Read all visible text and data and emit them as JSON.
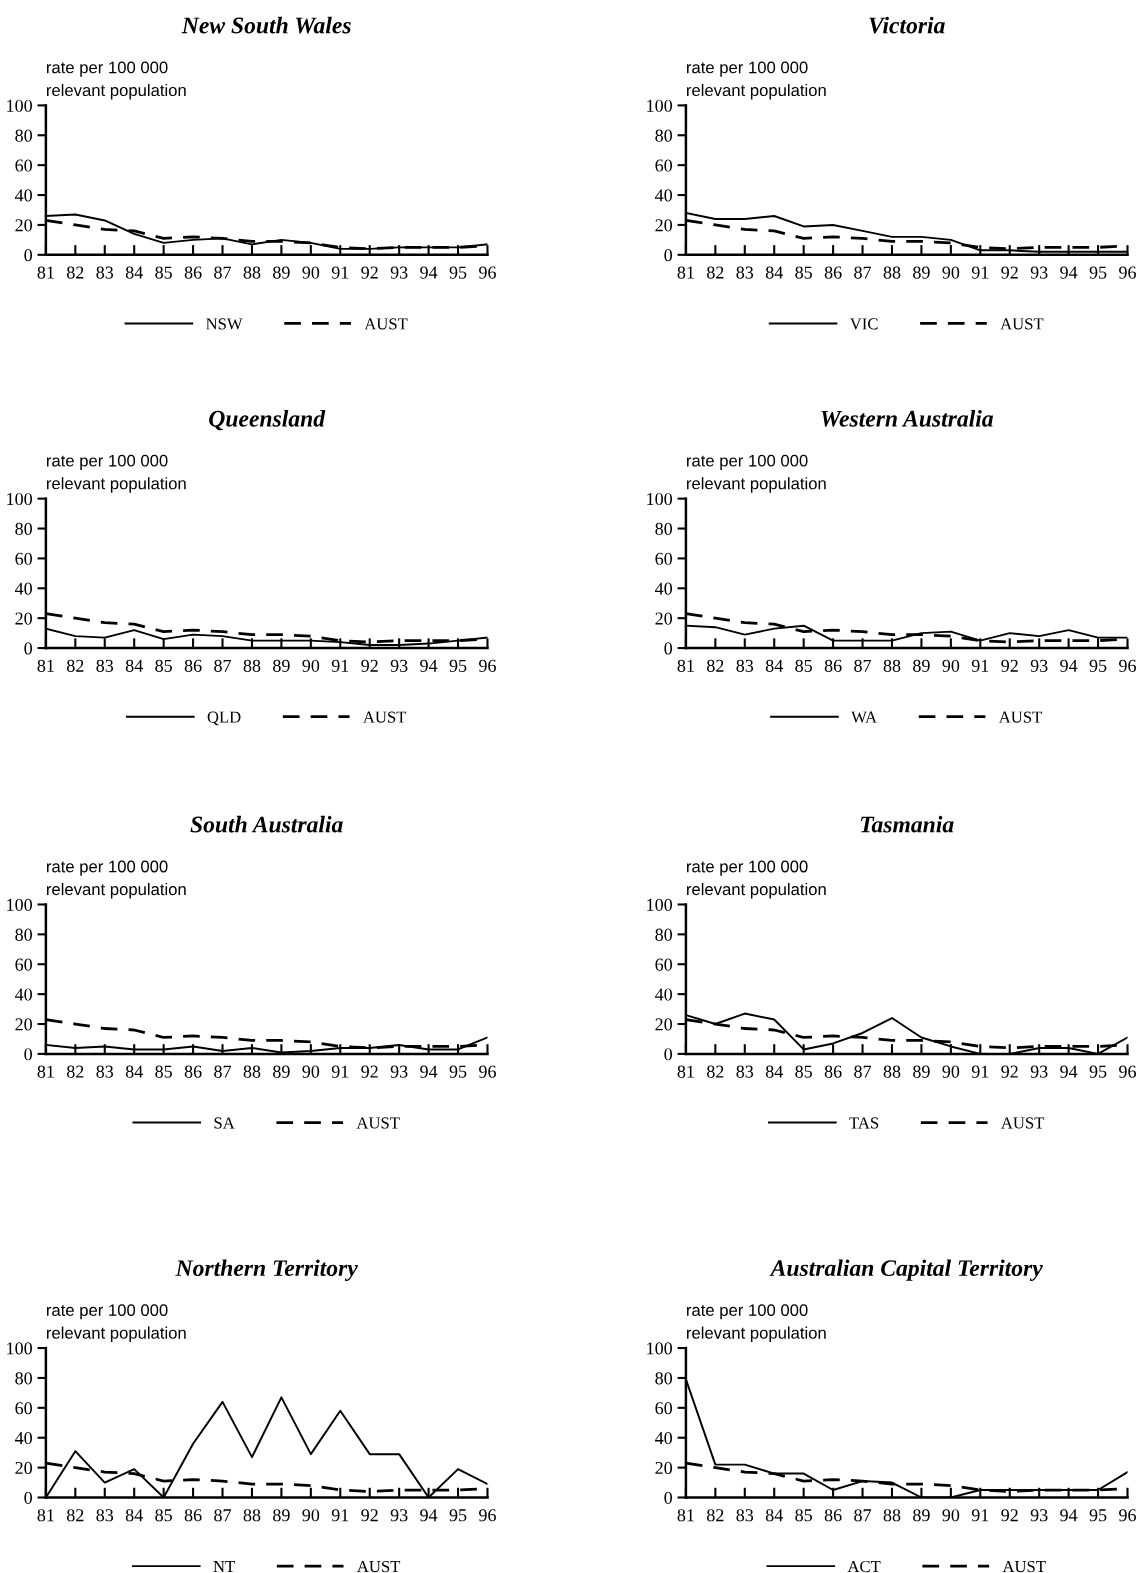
{
  "chart_data": [
    {
      "type": "line",
      "title": "New South Wales",
      "ylabel": "rate per 100 000\nrelevant population",
      "x": [
        81,
        82,
        83,
        84,
        85,
        86,
        87,
        88,
        89,
        90,
        91,
        92,
        93,
        94,
        95,
        96
      ],
      "xlim": [
        81,
        96
      ],
      "xticks": [
        81,
        82,
        83,
        84,
        85,
        86,
        87,
        88,
        89,
        90,
        91,
        92,
        93,
        94,
        95,
        96
      ],
      "ylim": [
        0,
        100
      ],
      "yticks": [
        0,
        20,
        40,
        60,
        80,
        100
      ],
      "legend": "bottom",
      "series": [
        {
          "name": "NSW",
          "color": "#000000",
          "line_style": "solid",
          "values": [
            26,
            27,
            23,
            14,
            8,
            10,
            11,
            7,
            10,
            8,
            4,
            4,
            5,
            5,
            5,
            7
          ]
        },
        {
          "name": "AUST",
          "color": "#000000",
          "line_style": "dashed",
          "values": [
            23,
            20,
            17,
            16,
            11,
            12,
            11,
            9,
            9,
            8,
            5,
            4,
            5,
            5,
            5,
            6
          ]
        }
      ]
    },
    {
      "type": "line",
      "title": "Victoria",
      "ylabel": "rate per 100 000\nrelevant population",
      "x": [
        81,
        82,
        83,
        84,
        85,
        86,
        87,
        88,
        89,
        90,
        91,
        92,
        93,
        94,
        95,
        96
      ],
      "xlim": [
        81,
        96
      ],
      "xticks": [
        81,
        82,
        83,
        84,
        85,
        86,
        87,
        88,
        89,
        90,
        91,
        92,
        93,
        94,
        95,
        96
      ],
      "ylim": [
        0,
        100
      ],
      "yticks": [
        0,
        20,
        40,
        60,
        80,
        100
      ],
      "legend": "bottom",
      "series": [
        {
          "name": "VIC",
          "color": "#000000",
          "line_style": "solid",
          "values": [
            28,
            24,
            24,
            26,
            19,
            20,
            16,
            12,
            12,
            10,
            3,
            3,
            2,
            2,
            2,
            2
          ]
        },
        {
          "name": "AUST",
          "color": "#000000",
          "line_style": "dashed",
          "values": [
            23,
            20,
            17,
            16,
            11,
            12,
            11,
            9,
            9,
            8,
            5,
            4,
            5,
            5,
            5,
            6
          ]
        }
      ]
    },
    {
      "type": "line",
      "title": "Queensland",
      "ylabel": "rate per 100 000\nrelevant population",
      "x": [
        81,
        82,
        83,
        84,
        85,
        86,
        87,
        88,
        89,
        90,
        91,
        92,
        93,
        94,
        95,
        96
      ],
      "xlim": [
        81,
        96
      ],
      "xticks": [
        81,
        82,
        83,
        84,
        85,
        86,
        87,
        88,
        89,
        90,
        91,
        92,
        93,
        94,
        95,
        96
      ],
      "ylim": [
        0,
        100
      ],
      "yticks": [
        0,
        20,
        40,
        60,
        80,
        100
      ],
      "legend": "bottom",
      "series": [
        {
          "name": "QLD",
          "color": "#000000",
          "line_style": "solid",
          "values": [
            13,
            8,
            7,
            12,
            6,
            9,
            8,
            5,
            5,
            5,
            4,
            2,
            2,
            3,
            5,
            7
          ]
        },
        {
          "name": "AUST",
          "color": "#000000",
          "line_style": "dashed",
          "values": [
            23,
            20,
            17,
            16,
            11,
            12,
            11,
            9,
            9,
            8,
            5,
            4,
            5,
            5,
            5,
            6
          ]
        }
      ]
    },
    {
      "type": "line",
      "title": "Western Australia",
      "ylabel": "rate per 100 000\nrelevant population",
      "x": [
        81,
        82,
        83,
        84,
        85,
        86,
        87,
        88,
        89,
        90,
        91,
        92,
        93,
        94,
        95,
        96
      ],
      "xlim": [
        81,
        96
      ],
      "xticks": [
        81,
        82,
        83,
        84,
        85,
        86,
        87,
        88,
        89,
        90,
        91,
        92,
        93,
        94,
        95,
        96
      ],
      "ylim": [
        0,
        100
      ],
      "yticks": [
        0,
        20,
        40,
        60,
        80,
        100
      ],
      "legend": "bottom",
      "series": [
        {
          "name": "WA",
          "color": "#000000",
          "line_style": "solid",
          "values": [
            15,
            14,
            9,
            13,
            15,
            5,
            5,
            5,
            10,
            11,
            5,
            10,
            8,
            12,
            7,
            7
          ]
        },
        {
          "name": "AUST",
          "color": "#000000",
          "line_style": "dashed",
          "values": [
            23,
            20,
            17,
            16,
            11,
            12,
            11,
            9,
            9,
            8,
            5,
            4,
            5,
            5,
            5,
            6
          ]
        }
      ]
    },
    {
      "type": "line",
      "title": "South Australia",
      "ylabel": "rate per 100 000\nrelevant population",
      "x": [
        81,
        82,
        83,
        84,
        85,
        86,
        87,
        88,
        89,
        90,
        91,
        92,
        93,
        94,
        95,
        96
      ],
      "xlim": [
        81,
        96
      ],
      "xticks": [
        81,
        82,
        83,
        84,
        85,
        86,
        87,
        88,
        89,
        90,
        91,
        92,
        93,
        94,
        95,
        96
      ],
      "ylim": [
        0,
        100
      ],
      "yticks": [
        0,
        20,
        40,
        60,
        80,
        100
      ],
      "legend": "bottom",
      "series": [
        {
          "name": "SA",
          "color": "#000000",
          "line_style": "solid",
          "values": [
            6,
            4,
            5,
            3,
            3,
            5,
            2,
            4,
            1,
            2,
            4,
            4,
            6,
            3,
            3,
            11
          ]
        },
        {
          "name": "AUST",
          "color": "#000000",
          "line_style": "dashed",
          "values": [
            23,
            20,
            17,
            16,
            11,
            12,
            11,
            9,
            9,
            8,
            5,
            4,
            5,
            5,
            5,
            6
          ]
        }
      ]
    },
    {
      "type": "line",
      "title": "Tasmania",
      "ylabel": "rate per 100 000\nrelevant population",
      "x": [
        81,
        82,
        83,
        84,
        85,
        86,
        87,
        88,
        89,
        90,
        91,
        92,
        93,
        94,
        95,
        96
      ],
      "xlim": [
        81,
        96
      ],
      "xticks": [
        81,
        82,
        83,
        84,
        85,
        86,
        87,
        88,
        89,
        90,
        91,
        92,
        93,
        94,
        95,
        96
      ],
      "ylim": [
        0,
        100
      ],
      "yticks": [
        0,
        20,
        40,
        60,
        80,
        100
      ],
      "legend": "bottom",
      "series": [
        {
          "name": "TAS",
          "color": "#000000",
          "line_style": "solid",
          "values": [
            26,
            20,
            27,
            23,
            3,
            7,
            14,
            24,
            11,
            5,
            0,
            0,
            4,
            4,
            0,
            11
          ]
        },
        {
          "name": "AUST",
          "color": "#000000",
          "line_style": "dashed",
          "values": [
            23,
            20,
            17,
            16,
            11,
            12,
            11,
            9,
            9,
            8,
            5,
            4,
            5,
            5,
            5,
            6
          ]
        }
      ]
    },
    {
      "type": "line",
      "title": "Northern Territory",
      "ylabel": "rate per 100 000\nrelevant population",
      "x": [
        81,
        82,
        83,
        84,
        85,
        86,
        87,
        88,
        89,
        90,
        91,
        92,
        93,
        94,
        95,
        96
      ],
      "xlim": [
        81,
        96
      ],
      "xticks": [
        81,
        82,
        83,
        84,
        85,
        86,
        87,
        88,
        89,
        90,
        91,
        92,
        93,
        94,
        95,
        96
      ],
      "ylim": [
        0,
        100
      ],
      "yticks": [
        0,
        20,
        40,
        60,
        80,
        100
      ],
      "legend": "bottom",
      "series": [
        {
          "name": "NT",
          "color": "#000000",
          "line_style": "solid",
          "values": [
            0,
            31,
            10,
            19,
            0,
            36,
            64,
            27,
            67,
            29,
            58,
            29,
            29,
            0,
            19,
            9
          ]
        },
        {
          "name": "AUST",
          "color": "#000000",
          "line_style": "dashed",
          "values": [
            23,
            20,
            17,
            16,
            11,
            12,
            11,
            9,
            9,
            8,
            5,
            4,
            5,
            5,
            5,
            6
          ]
        }
      ]
    },
    {
      "type": "line",
      "title": "Australian Capital Territory",
      "ylabel": "rate per 100 000\nrelevant population",
      "x": [
        81,
        82,
        83,
        84,
        85,
        86,
        87,
        88,
        89,
        90,
        91,
        92,
        93,
        94,
        95,
        96
      ],
      "xlim": [
        81,
        96
      ],
      "xticks": [
        81,
        82,
        83,
        84,
        85,
        86,
        87,
        88,
        89,
        90,
        91,
        92,
        93,
        94,
        95,
        96
      ],
      "ylim": [
        0,
        100
      ],
      "yticks": [
        0,
        20,
        40,
        60,
        80,
        100
      ],
      "legend": "bottom",
      "series": [
        {
          "name": "ACT",
          "color": "#000000",
          "line_style": "solid",
          "values": [
            79,
            22,
            22,
            16,
            16,
            5,
            11,
            10,
            0,
            0,
            5,
            5,
            5,
            5,
            5,
            17
          ]
        },
        {
          "name": "AUST",
          "color": "#000000",
          "line_style": "dashed",
          "values": [
            23,
            20,
            17,
            16,
            11,
            12,
            11,
            9,
            9,
            8,
            5,
            4,
            5,
            5,
            5,
            6
          ]
        }
      ]
    }
  ]
}
